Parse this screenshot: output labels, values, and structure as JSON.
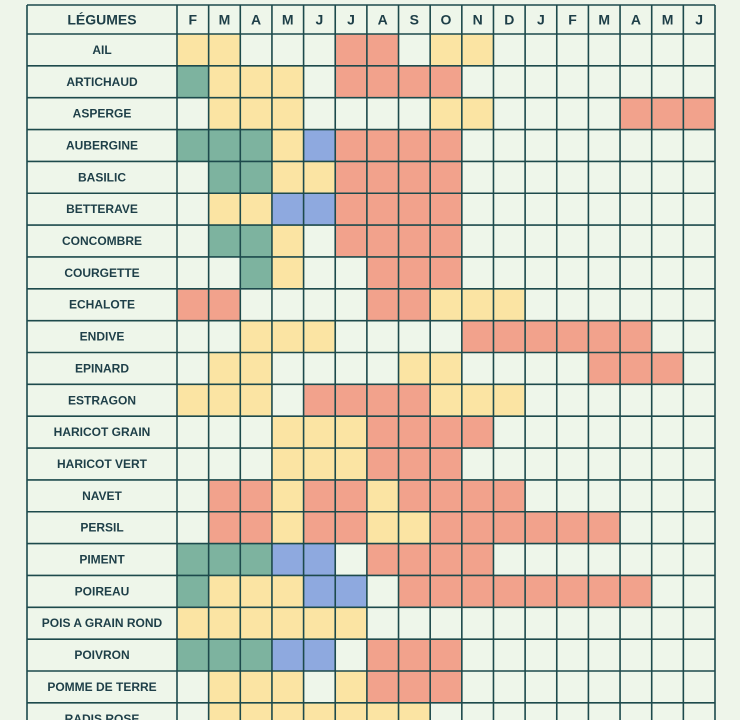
{
  "table": {
    "header": [
      "LÉGUMES",
      "F",
      "M",
      "A",
      "M",
      "J",
      "J",
      "A",
      "S",
      "O",
      "N",
      "D",
      "J",
      "F",
      "M",
      "A",
      "M",
      "J"
    ],
    "rows": [
      {
        "label": "AIL",
        "cells": [
          "#fbe4a3",
          "#fbe4a3",
          null,
          null,
          null,
          "#f2a28c",
          "#f2a28c",
          null,
          "#fbe4a3",
          "#fbe4a3",
          null,
          null,
          null,
          null,
          null,
          null,
          null
        ]
      },
      {
        "label": "ARTICHAUD",
        "cells": [
          "#7db39f",
          "#fbe4a3",
          "#fbe4a3",
          "#fbe4a3",
          null,
          "#f2a28c",
          "#f2a28c",
          "#f2a28c",
          "#f2a28c",
          null,
          null,
          null,
          null,
          null,
          null,
          null,
          null
        ]
      },
      {
        "label": "ASPERGE",
        "cells": [
          null,
          "#fbe4a3",
          "#fbe4a3",
          "#fbe4a3",
          null,
          null,
          null,
          null,
          "#fbe4a3",
          "#fbe4a3",
          null,
          null,
          null,
          null,
          "#f2a28c",
          "#f2a28c",
          "#f2a28c"
        ]
      },
      {
        "label": "AUBERGINE",
        "cells": [
          "#7db39f",
          "#7db39f",
          "#7db39f",
          "#fbe4a3",
          "#8ea9df",
          "#f2a28c",
          "#f2a28c",
          "#f2a28c",
          "#f2a28c",
          null,
          null,
          null,
          null,
          null,
          null,
          null,
          null
        ]
      },
      {
        "label": "BASILIC",
        "cells": [
          null,
          "#7db39f",
          "#7db39f",
          "#fbe4a3",
          "#fbe4a3",
          "#f2a28c",
          "#f2a28c",
          "#f2a28c",
          "#f2a28c",
          null,
          null,
          null,
          null,
          null,
          null,
          null,
          null
        ]
      },
      {
        "label": "BETTERAVE",
        "cells": [
          null,
          "#fbe4a3",
          "#fbe4a3",
          "#8ea9df",
          "#8ea9df",
          "#f2a28c",
          "#f2a28c",
          "#f2a28c",
          "#f2a28c",
          null,
          null,
          null,
          null,
          null,
          null,
          null,
          null
        ]
      },
      {
        "label": "CONCOMBRE",
        "cells": [
          null,
          "#7db39f",
          "#7db39f",
          "#fbe4a3",
          null,
          "#f2a28c",
          "#f2a28c",
          "#f2a28c",
          "#f2a28c",
          null,
          null,
          null,
          null,
          null,
          null,
          null,
          null
        ]
      },
      {
        "label": "COURGETTE",
        "cells": [
          null,
          null,
          "#7db39f",
          "#fbe4a3",
          null,
          null,
          "#f2a28c",
          "#f2a28c",
          "#f2a28c",
          null,
          null,
          null,
          null,
          null,
          null,
          null,
          null
        ]
      },
      {
        "label": "ECHALOTE",
        "cells": [
          "#f2a28c",
          "#f2a28c",
          null,
          null,
          null,
          null,
          "#f2a28c",
          "#f2a28c",
          "#fbe4a3",
          "#fbe4a3",
          "#fbe4a3",
          null,
          null,
          null,
          null,
          null,
          null
        ]
      },
      {
        "label": "ENDIVE",
        "cells": [
          null,
          null,
          "#fbe4a3",
          "#fbe4a3",
          "#fbe4a3",
          null,
          null,
          null,
          null,
          "#f2a28c",
          "#f2a28c",
          "#f2a28c",
          "#f2a28c",
          "#f2a28c",
          "#f2a28c",
          null,
          null
        ]
      },
      {
        "label": "EPINARD",
        "cells": [
          null,
          "#fbe4a3",
          "#fbe4a3",
          null,
          null,
          null,
          null,
          "#fbe4a3",
          "#fbe4a3",
          null,
          null,
          null,
          null,
          "#f2a28c",
          "#f2a28c",
          "#f2a28c",
          null
        ]
      },
      {
        "label": "ESTRAGON",
        "cells": [
          "#fbe4a3",
          "#fbe4a3",
          "#fbe4a3",
          null,
          "#f2a28c",
          "#f2a28c",
          "#f2a28c",
          "#f2a28c",
          "#fbe4a3",
          "#fbe4a3",
          "#fbe4a3",
          null,
          null,
          null,
          null,
          null,
          null
        ]
      },
      {
        "label": "HARICOT GRAIN",
        "cells": [
          null,
          null,
          null,
          "#fbe4a3",
          "#fbe4a3",
          "#fbe4a3",
          "#f2a28c",
          "#f2a28c",
          "#f2a28c",
          "#f2a28c",
          null,
          null,
          null,
          null,
          null,
          null,
          null
        ]
      },
      {
        "label": "HARICOT VERT",
        "cells": [
          null,
          null,
          null,
          "#fbe4a3",
          "#fbe4a3",
          "#fbe4a3",
          "#f2a28c",
          "#f2a28c",
          "#f2a28c",
          null,
          null,
          null,
          null,
          null,
          null,
          null,
          null
        ]
      },
      {
        "label": "NAVET",
        "cells": [
          null,
          "#f2a28c",
          "#f2a28c",
          "#fbe4a3",
          "#f2a28c",
          "#f2a28c",
          "#fbe4a3",
          "#f2a28c",
          "#f2a28c",
          "#f2a28c",
          "#f2a28c",
          null,
          null,
          null,
          null,
          null,
          null
        ]
      },
      {
        "label": "PERSIL",
        "cells": [
          null,
          "#f2a28c",
          "#f2a28c",
          "#fbe4a3",
          "#f2a28c",
          "#f2a28c",
          "#fbe4a3",
          "#fbe4a3",
          "#f2a28c",
          "#f2a28c",
          "#f2a28c",
          "#f2a28c",
          "#f2a28c",
          "#f2a28c",
          null,
          null,
          null
        ]
      },
      {
        "label": "PIMENT",
        "cells": [
          "#7db39f",
          "#7db39f",
          "#7db39f",
          "#8ea9df",
          "#8ea9df",
          null,
          "#f2a28c",
          "#f2a28c",
          "#f2a28c",
          "#f2a28c",
          null,
          null,
          null,
          null,
          null,
          null,
          null
        ]
      },
      {
        "label": "POIREAU",
        "cells": [
          "#7db39f",
          "#fbe4a3",
          "#fbe4a3",
          "#fbe4a3",
          "#8ea9df",
          "#8ea9df",
          null,
          "#f2a28c",
          "#f2a28c",
          "#f2a28c",
          "#f2a28c",
          "#f2a28c",
          "#f2a28c",
          "#f2a28c",
          "#f2a28c",
          null,
          null
        ]
      },
      {
        "label": "POIS A GRAIN ROND",
        "cells": [
          "#fbe4a3",
          "#fbe4a3",
          "#fbe4a3",
          "#fbe4a3",
          "#fbe4a3",
          "#fbe4a3",
          null,
          null,
          null,
          null,
          null,
          null,
          null,
          null,
          null,
          null,
          null
        ]
      },
      {
        "label": "POIVRON",
        "cells": [
          "#7db39f",
          "#7db39f",
          "#7db39f",
          "#8ea9df",
          "#8ea9df",
          null,
          "#f2a28c",
          "#f2a28c",
          "#f2a28c",
          null,
          null,
          null,
          null,
          null,
          null,
          null,
          null
        ]
      },
      {
        "label": "POMME DE TERRE",
        "cells": [
          null,
          "#fbe4a3",
          "#fbe4a3",
          "#fbe4a3",
          null,
          "#fbe4a3",
          "#f2a28c",
          "#f2a28c",
          "#f2a28c",
          null,
          null,
          null,
          null,
          null,
          null,
          null,
          null
        ]
      },
      {
        "label": "RADIS ROSE",
        "cells": [
          null,
          "#fbe4a3",
          "#fbe4a3",
          "#fbe4a3",
          "#fbe4a3",
          "#fbe4a3",
          "#fbe4a3",
          "#fbe4a3",
          null,
          null,
          null,
          null,
          null,
          null,
          null,
          null,
          null
        ]
      }
    ]
  }
}
